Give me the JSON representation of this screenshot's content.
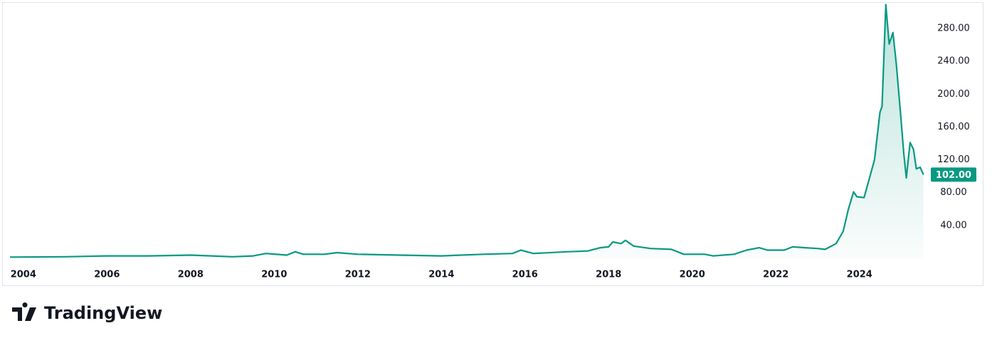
{
  "chart_data": {
    "type": "area",
    "x": [
      2003.68,
      2005,
      2006,
      2007,
      2008,
      2008.5,
      2009,
      2009.5,
      2009.8,
      2010.3,
      2010.5,
      2010.7,
      2011.2,
      2011.5,
      2012,
      2013,
      2014,
      2015,
      2015.7,
      2015.9,
      2016.2,
      2017,
      2017.5,
      2017.8,
      2018,
      2018.1,
      2018.3,
      2018.4,
      2018.6,
      2019,
      2019.5,
      2019.8,
      2020.3,
      2020.5,
      2021,
      2021.3,
      2021.6,
      2021.8,
      2022.2,
      2022.4,
      2022.7,
      2023.0,
      2023.18,
      2023.44,
      2023.61,
      2023.73,
      2023.86,
      2023.94,
      2024.11,
      2024.24,
      2024.36,
      2024.49,
      2024.54,
      2024.63,
      2024.71,
      2024.8,
      2024.88,
      2024.99,
      2025.06,
      2025.12,
      2025.21,
      2025.29,
      2025.36,
      2025.45,
      2025.53
    ],
    "values": [
      1.5,
      2,
      3,
      3,
      4,
      3,
      2,
      3,
      6,
      4,
      8,
      5,
      5,
      7,
      5,
      4,
      3,
      5,
      6,
      10,
      6,
      8,
      9,
      13,
      14,
      20,
      18,
      22,
      15,
      12,
      11,
      5,
      5,
      3,
      5,
      10,
      13,
      10,
      10,
      14,
      13,
      12,
      11,
      18,
      33,
      59,
      81,
      75,
      74,
      98,
      120,
      178,
      185,
      309,
      261,
      275,
      237,
      172,
      128,
      98,
      141,
      133,
      109,
      111,
      102
    ],
    "value_labels": [
      null,
      null,
      null,
      null,
      null,
      null,
      null,
      null,
      null,
      null,
      null,
      null,
      null,
      null,
      null,
      null,
      null,
      null,
      null,
      null,
      null,
      null,
      null,
      null,
      null,
      null,
      null,
      null,
      null,
      null,
      null,
      null,
      null,
      null,
      null,
      null,
      null,
      null,
      null,
      null,
      null,
      null,
      null,
      null,
      null,
      null,
      null,
      null,
      null,
      null,
      null,
      null,
      null,
      null,
      null,
      null,
      null,
      null,
      null,
      null,
      null,
      null,
      null,
      null,
      "102.00"
    ],
    "color": "#089981",
    "xlim": [
      2003.68,
      2025.57
    ],
    "ylim": [
      -6,
      312
    ],
    "xticks": [
      2004,
      2006,
      2008,
      2010,
      2012,
      2014,
      2016,
      2018,
      2020,
      2022,
      2024
    ],
    "yticks": [
      {
        "value": 40,
        "label": "40.00"
      },
      {
        "value": 80,
        "label": "80.00"
      },
      {
        "value": 120,
        "label": "120.00"
      },
      {
        "value": 160,
        "label": "160.00"
      },
      {
        "value": 200,
        "label": "200.00"
      },
      {
        "value": 240,
        "label": "240.00"
      },
      {
        "value": 280,
        "label": "280.00"
      }
    ],
    "grid": false
  },
  "brand": "TradingView"
}
